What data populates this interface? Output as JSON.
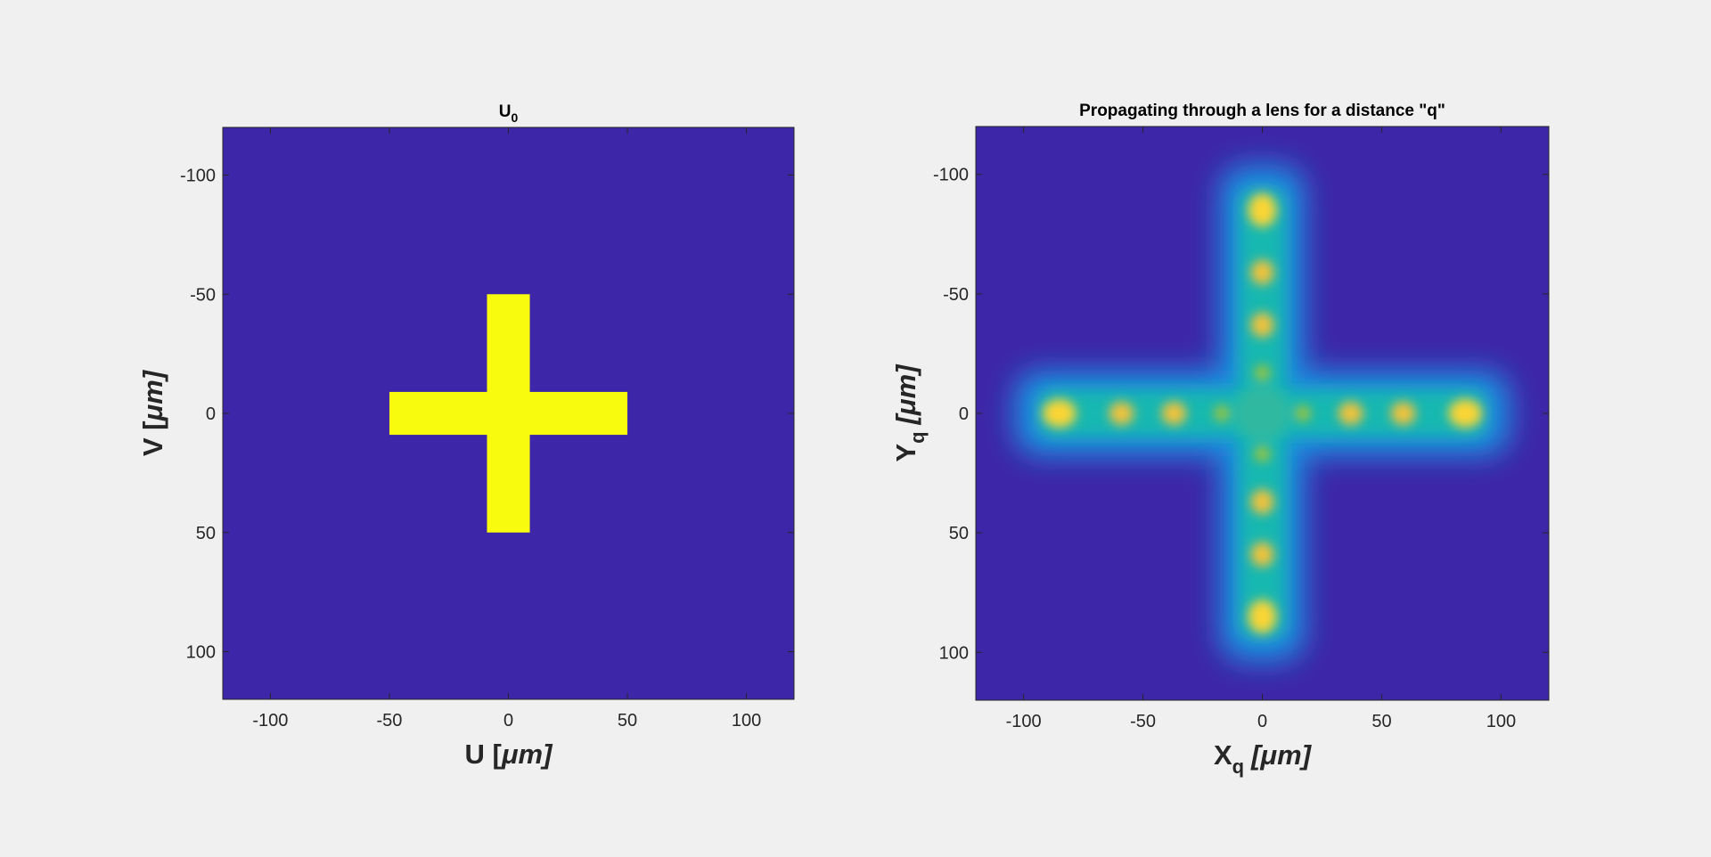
{
  "chart_data": [
    {
      "type": "heatmap",
      "title": "U",
      "title_subscript": "0",
      "xlabel": "U [",
      "xlabel_unit": "μm]",
      "ylabel": "V [",
      "ylabel_unit": "μm]",
      "xlim": [
        -120,
        120
      ],
      "ylim": [
        -120,
        120
      ],
      "y_direction": "reversed",
      "x_ticks": [
        -100,
        -50,
        0,
        50,
        100
      ],
      "y_ticks": [
        -100,
        -50,
        0,
        50,
        100
      ],
      "colormap": "parula",
      "background_color": "#3d26a8",
      "shape": "cross",
      "cross_vertical_bar": {
        "x": [
          -9,
          9
        ],
        "y": [
          -50,
          50
        ]
      },
      "cross_horizontal_bar": {
        "x": [
          -50,
          50
        ],
        "y": [
          -9,
          9
        ]
      },
      "cross_color": "#f9fb0e"
    },
    {
      "type": "heatmap",
      "title": "Propagating through a lens for a distance \"q\"",
      "xlabel": "X",
      "xlabel_subscript": "q",
      "xlabel_unit": "[μm]",
      "ylabel": "Y",
      "ylabel_subscript": "q",
      "ylabel_unit": "[μm]",
      "xlim": [
        -120,
        120
      ],
      "ylim": [
        -120,
        120
      ],
      "y_direction": "reversed",
      "x_ticks": [
        -100,
        -50,
        0,
        50,
        100
      ],
      "y_ticks": [
        -100,
        -50,
        0,
        50,
        100
      ],
      "colormap": "parula",
      "background_color": "#3d26a8",
      "shape": "blurred cross with intensity peaks",
      "arm_extent": 100,
      "arm_halfwidth": 12,
      "peaks_along_arms": [
        -85,
        -59,
        -37,
        -17,
        17,
        37,
        59,
        85
      ]
    }
  ]
}
